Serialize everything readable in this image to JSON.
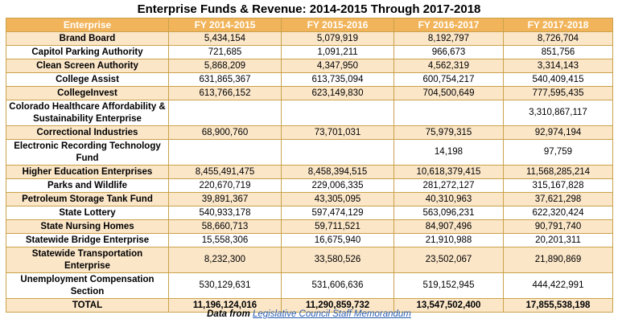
{
  "title": "Enterprise Funds & Revenue: 2014-2015 Through 2017-2018",
  "headers": [
    "Enterprise",
    "FY 2014-2015",
    "FY 2015-2016",
    "FY 2016-2017",
    "FY 2017-2018"
  ],
  "rows": [
    {
      "name": "Brand Board",
      "v": [
        "5,434,154",
        "5,079,919",
        "8,192,797",
        "8,726,704"
      ]
    },
    {
      "name": "Capitol Parking Authority",
      "v": [
        "721,685",
        "1,091,211",
        "966,673",
        "851,756"
      ]
    },
    {
      "name": "Clean Screen Authority",
      "v": [
        "5,868,209",
        "4,347,950",
        "4,562,319",
        "3,314,143"
      ]
    },
    {
      "name": "College Assist",
      "v": [
        "631,865,367",
        "613,735,094",
        "600,754,217",
        "540,409,415"
      ]
    },
    {
      "name": "CollegeInvest",
      "v": [
        "613,766,152",
        "623,149,830",
        "704,500,649",
        "777,595,435"
      ]
    },
    {
      "name": "Colorado Healthcare Affordability & Sustainability Enterprise",
      "v": [
        "",
        "",
        "",
        "3,310,867,117"
      ]
    },
    {
      "name": "Correctional Industries",
      "v": [
        "68,900,760",
        "73,701,031",
        "75,979,315",
        "92,974,194"
      ]
    },
    {
      "name": "Electronic Recording Technology Fund",
      "v": [
        "",
        "",
        "14,198",
        "97,759"
      ]
    },
    {
      "name": "Higher Education Enterprises",
      "v": [
        "8,455,491,475",
        "8,458,394,515",
        "10,618,379,415",
        "11,568,285,214"
      ]
    },
    {
      "name": "Parks and Wildlife",
      "v": [
        "220,670,719",
        "229,006,335",
        "281,272,127",
        "315,167,828"
      ]
    },
    {
      "name": "Petroleum Storage Tank Fund",
      "v": [
        "39,891,367",
        "43,305,095",
        "40,310,963",
        "37,621,298"
      ]
    },
    {
      "name": "State Lottery",
      "v": [
        "540,933,178",
        "597,474,129",
        "563,096,231",
        "622,320,424"
      ]
    },
    {
      "name": "State Nursing Homes",
      "v": [
        "58,660,713",
        "59,711,521",
        "84,907,496",
        "90,791,740"
      ]
    },
    {
      "name": "Statewide Bridge Enterprise",
      "v": [
        "15,558,306",
        "16,675,940",
        "21,910,988",
        "20,201,311"
      ]
    },
    {
      "name": "Statewide Transportation Enterprise",
      "v": [
        "8,232,300",
        "33,580,526",
        "23,502,067",
        "21,890,869"
      ]
    },
    {
      "name": "Unemployment Compensation Section",
      "v": [
        "530,129,631",
        "531,606,636",
        "519,152,945",
        "444,422,991"
      ]
    }
  ],
  "total": {
    "name": "TOTAL",
    "v": [
      "11,196,124,016",
      "11,290,859,732",
      "13,547,502,400",
      "17,855,538,198"
    ]
  },
  "caption": {
    "prefix": "Data from ",
    "link": "Legislative Council Staff Memorandum"
  }
}
